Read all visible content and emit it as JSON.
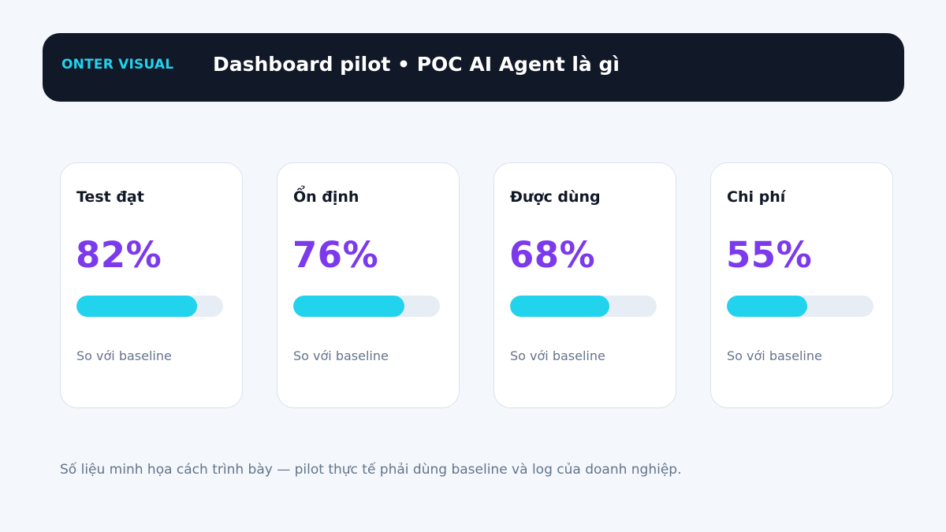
{
  "header": {
    "brand": "ONTER VISUAL",
    "title": "Dashboard pilot • POC AI Agent là gì"
  },
  "colors": {
    "background": "#f4f7fb",
    "header_bg": "#111827",
    "brand": "#22d3ee",
    "value_accent": "#7c3aed",
    "bar_fill": "#22d3ee",
    "bar_track": "#e7edf5"
  },
  "cards": [
    {
      "label": "Test đạt",
      "value": "82%",
      "progress": 0.82,
      "note": "So với baseline"
    },
    {
      "label": "Ổn định",
      "value": "76%",
      "progress": 0.76,
      "note": "So với baseline"
    },
    {
      "label": "Được dùng",
      "value": "68%",
      "progress": 0.68,
      "note": "So với baseline"
    },
    {
      "label": "Chi phí",
      "value": "55%",
      "progress": 0.55,
      "note": "So với baseline"
    }
  ],
  "footnote": "Số liệu minh họa cách trình bày — pilot thực tế phải dùng baseline và log của doanh nghiệp."
}
